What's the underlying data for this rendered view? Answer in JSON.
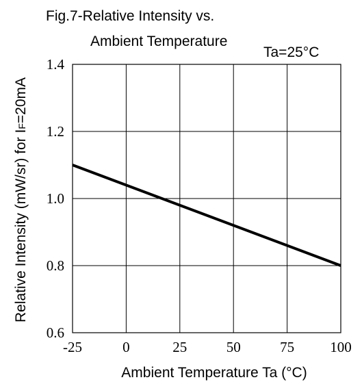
{
  "chart_data": {
    "type": "line",
    "title_line1": "Fig.7-Relative Intensity vs.",
    "title_line2": "Ambient Temperature",
    "condition": "Ta=25°C",
    "xlabel": "Ambient Temperature Ta (°C)",
    "ylabel_main": "Relative Intensity (mW/sr) for I",
    "ylabel_sub": "F",
    "ylabel_tail": "=20mA",
    "xlim": [
      -25,
      100
    ],
    "ylim": [
      0.6,
      1.4
    ],
    "x_ticks": [
      -25,
      0,
      25,
      50,
      75,
      100
    ],
    "x_tick_labels": [
      "-25",
      "0",
      "25",
      "50",
      "75",
      "100"
    ],
    "y_ticks": [
      0.6,
      0.8,
      1.0,
      1.2,
      1.4
    ],
    "y_tick_labels": [
      "0.6",
      "0.8",
      "1.0",
      "1.2",
      "1.4"
    ],
    "grid": true,
    "series": [
      {
        "x": [
          -25,
          100
        ],
        "y": [
          1.1,
          0.8
        ],
        "color": "#000000"
      }
    ]
  }
}
